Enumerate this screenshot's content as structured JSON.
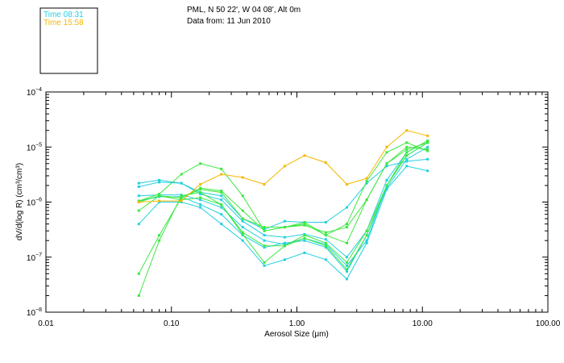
{
  "header": {
    "location": "PML, N 50 22', W 04 08', Alt 0m",
    "date": "Data from: 11 Jun 2010"
  },
  "chart_data": {
    "type": "line",
    "title": "",
    "xlabel": "Aerosol Size (μm)",
    "ylabel": "dV/d(log R) (cm³/cm³)",
    "xscale": "log",
    "yscale": "log",
    "xlim": [
      0.01,
      100
    ],
    "ylim": [
      1e-08,
      0.0001
    ],
    "grid": false,
    "legend_placement": "top-left box",
    "x_ticks": [
      {
        "value": 0.01,
        "label": "0.01"
      },
      {
        "value": 0.1,
        "label": "0.10"
      },
      {
        "value": 1,
        "label": "1.00"
      },
      {
        "value": 10,
        "label": "10.00"
      },
      {
        "value": 100,
        "label": "100.00"
      }
    ],
    "y_ticks": [
      {
        "value": 1e-08,
        "mant": "10",
        "exp": "−8"
      },
      {
        "value": 1e-07,
        "mant": "10",
        "exp": "−7"
      },
      {
        "value": 1e-06,
        "mant": "10",
        "exp": "−6"
      },
      {
        "value": 1e-05,
        "mant": "10",
        "exp": "−5"
      },
      {
        "value": 0.0001,
        "mant": "10",
        "exp": "−4"
      }
    ],
    "legend": [
      {
        "label": "Time 08:31",
        "color": "#22d0e0"
      },
      {
        "label": "Time 15:58",
        "color": "#f5b800"
      }
    ],
    "x": [
      0.055,
      0.08,
      0.12,
      0.17,
      0.25,
      0.37,
      0.55,
      0.8,
      1.15,
      1.7,
      2.5,
      3.6,
      5.2,
      7.5,
      11
    ],
    "series": [
      {
        "color": "#22d0e0",
        "values": [
          1.05e-06,
          1.25e-06,
          1.25e-06,
          9e-07,
          6e-07,
          2.5e-07,
          1.5e-07,
          1.8e-07,
          2e-07,
          1.5e-07,
          5.5e-08,
          2.5e-07,
          1.8e-06,
          6e-06,
          1e-05
        ]
      },
      {
        "color": "#22d0e0",
        "values": [
          1.3e-06,
          1.35e-06,
          1.35e-06,
          1.1e-06,
          8e-07,
          3.5e-07,
          2e-07,
          1.7e-07,
          2.2e-07,
          1.7e-07,
          7e-08,
          2e-07,
          2e-06,
          7e-06,
          1.2e-05
        ]
      },
      {
        "color": "#22d0e0",
        "values": [
          1.9e-06,
          2.3e-06,
          2.2e-06,
          1.4e-06,
          1.1e-06,
          4.5e-07,
          2.5e-07,
          2.3e-07,
          2.6e-07,
          2.1e-07,
          1e-07,
          3e-07,
          2.5e-06,
          8e-06,
          1.3e-05
        ]
      },
      {
        "color": "#22d0e0",
        "values": [
          2.2e-06,
          2.5e-06,
          2.2e-06,
          1.5e-06,
          1.3e-06,
          5e-07,
          3.2e-07,
          4.5e-07,
          4.3e-07,
          4.3e-07,
          8e-07,
          2.2e-06,
          4.5e-06,
          5.5e-06,
          6e-06
        ]
      },
      {
        "color": "#22d0e0",
        "values": [
          4e-07,
          1e-06,
          1e-06,
          8e-07,
          4e-07,
          2e-07,
          7e-08,
          9e-08,
          1.2e-07,
          9e-08,
          4e-08,
          1.8e-07,
          1.7e-06,
          4.5e-06,
          3.7e-06
        ]
      },
      {
        "color": "#3ce840",
        "values": [
          1e-06,
          1.3e-06,
          1.2e-06,
          1.7e-06,
          1.5e-06,
          5e-07,
          3.5e-07,
          3.5e-07,
          4e-07,
          2.5e-07,
          1.8e-07,
          1.1e-06,
          5e-06,
          9e-06,
          1.2e-05
        ]
      },
      {
        "color": "#3ce840",
        "values": [
          7e-07,
          1.3e-06,
          1.1e-06,
          1.2e-06,
          9e-07,
          2.8e-07,
          1.6e-07,
          1.6e-07,
          2.5e-07,
          1.8e-07,
          8e-08,
          3e-07,
          2e-06,
          8e-06,
          1.3e-05
        ]
      },
      {
        "color": "#3ce840",
        "values": [
          5e-08,
          2.5e-07,
          1.2e-06,
          1.8e-06,
          1.6e-06,
          7e-07,
          3e-07,
          3.5e-07,
          3.8e-07,
          2.8e-07,
          3.5e-07,
          1.1e-06,
          5e-06,
          1e-05,
          9e-06
        ]
      },
      {
        "color": "#3ce840",
        "values": [
          2e-08,
          2e-07,
          1.3e-06,
          1.5e-06,
          9e-07,
          2.6e-07,
          8e-08,
          1.6e-07,
          2.2e-07,
          1.6e-07,
          6e-08,
          2.5e-07,
          2e-06,
          7e-06,
          1.2e-05
        ]
      },
      {
        "color": "#3ce840",
        "values": [
          1.05e-06,
          1.4e-06,
          3.2e-06,
          5e-06,
          4e-06,
          1.3e-06,
          3e-07,
          3.5e-07,
          4.3e-07,
          2.5e-07,
          4e-07,
          2.4e-06,
          8e-06,
          1.2e-05,
          8.5e-06
        ]
      },
      {
        "color": "#f5b800",
        "values": [
          1e-06,
          1.05e-06,
          1.05e-06,
          2.1e-06,
          3.2e-06,
          2.8e-06,
          2.1e-06,
          4.5e-06,
          7e-06,
          5.2e-06,
          2.1e-06,
          2.7e-06,
          1e-05,
          2e-05,
          1.6e-05
        ]
      }
    ]
  }
}
